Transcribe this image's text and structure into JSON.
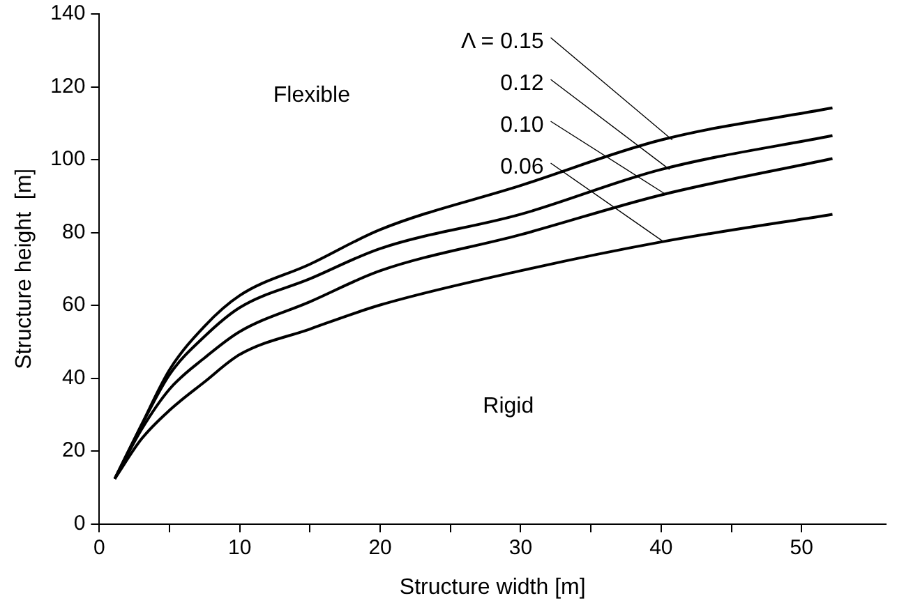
{
  "chart_data": {
    "type": "line",
    "xlabel": "Structure width [m]",
    "ylabel": "Structure height  [m]",
    "x": [
      1.1,
      3,
      5,
      7.5,
      10,
      15,
      20,
      30,
      40,
      52.2
    ],
    "series": [
      {
        "name": "Λ = 0.15",
        "color": "#000000",
        "values": [
          12.4,
          27.2,
          42.3,
          54.3,
          62.7,
          71.3,
          80.8,
          92.9,
          105.4,
          114.2
        ]
      },
      {
        "name": "0.12",
        "color": "#000000",
        "values": [
          12.4,
          27,
          41,
          51.5,
          59.4,
          67.3,
          75.6,
          85,
          97.3,
          106.6
        ]
      },
      {
        "name": "0.10",
        "color": "#000000",
        "values": [
          12.4,
          25.9,
          37,
          45.6,
          52.8,
          61,
          69.5,
          79.4,
          90.3,
          100.3
        ]
      },
      {
        "name": "0.06",
        "color": "#000000",
        "values": [
          12.4,
          23.3,
          31.2,
          39,
          46.5,
          53.5,
          60.1,
          69.5,
          77.4,
          85
        ]
      }
    ],
    "xlim": [
      0,
      56
    ],
    "xticks": [
      0,
      {
        "value": 5,
        "label": null
      },
      10,
      {
        "value": 15,
        "label": null
      },
      20,
      {
        "value": 25,
        "label": null
      },
      30,
      {
        "value": 35,
        "label": null
      },
      40,
      {
        "value": 45,
        "label": null
      },
      50
    ],
    "ylim": [
      0,
      140
    ],
    "yticks": [
      0,
      20,
      40,
      60,
      80,
      100,
      120,
      140
    ],
    "annotations": [
      "Flexible",
      "Rigid"
    ],
    "grid": false,
    "legend": false,
    "marker": "none",
    "line_style": "solid"
  }
}
